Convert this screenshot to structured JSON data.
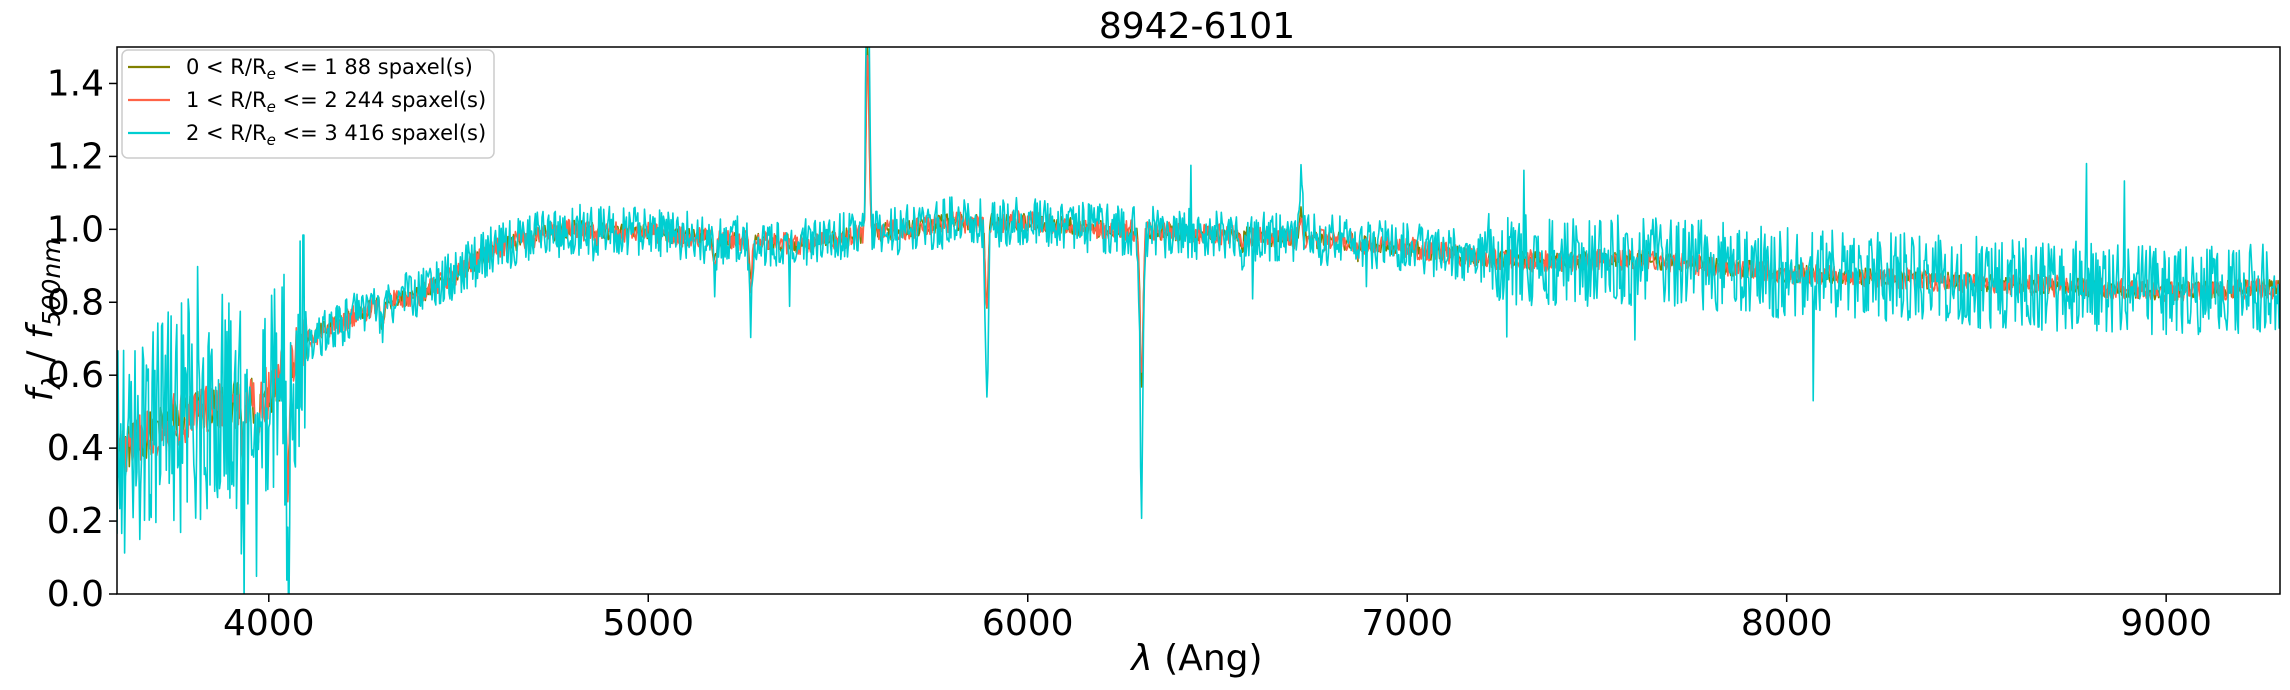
{
  "chart_data": {
    "type": "line",
    "title": "8942-6101",
    "xlabel": {
      "main": "λ",
      "rest": " (Ang)"
    },
    "ylabel": {
      "f": "f",
      "sub1": "λ",
      "sep": " / ",
      "f2": "f",
      "sub2": "500nm"
    },
    "xlim": [
      3600,
      9300
    ],
    "ylim": [
      0.0,
      1.5
    ],
    "xticks": [
      4000,
      5000,
      6000,
      7000,
      8000,
      9000
    ],
    "xtick_labels": [
      "4000",
      "5000",
      "6000",
      "7000",
      "8000",
      "9000"
    ],
    "yticks": [
      0.0,
      0.2,
      0.4,
      0.6,
      0.8,
      1.0,
      1.2,
      1.4
    ],
    "ytick_labels": [
      "0.0",
      "0.2",
      "0.4",
      "0.6",
      "0.8",
      "1.0",
      "1.2",
      "1.4"
    ],
    "grid": false,
    "legend_position": "top-left",
    "continuum": [
      [
        3600,
        0.38
      ],
      [
        3700,
        0.45
      ],
      [
        3800,
        0.5
      ],
      [
        3900,
        0.52
      ],
      [
        4000,
        0.55
      ],
      [
        4100,
        0.7
      ],
      [
        4200,
        0.75
      ],
      [
        4300,
        0.8
      ],
      [
        4400,
        0.82
      ],
      [
        4500,
        0.88
      ],
      [
        4600,
        0.95
      ],
      [
        4700,
        0.98
      ],
      [
        4800,
        1.0
      ],
      [
        5000,
        0.99
      ],
      [
        5200,
        0.97
      ],
      [
        5400,
        0.96
      ],
      [
        5600,
        0.99
      ],
      [
        5800,
        1.02
      ],
      [
        6000,
        1.02
      ],
      [
        6200,
        1.0
      ],
      [
        6400,
        0.99
      ],
      [
        6600,
        0.98
      ],
      [
        6800,
        0.97
      ],
      [
        7000,
        0.95
      ],
      [
        7200,
        0.92
      ],
      [
        7400,
        0.91
      ],
      [
        7600,
        0.92
      ],
      [
        7800,
        0.9
      ],
      [
        8000,
        0.88
      ],
      [
        8200,
        0.87
      ],
      [
        8400,
        0.86
      ],
      [
        8600,
        0.85
      ],
      [
        8800,
        0.84
      ],
      [
        9000,
        0.83
      ],
      [
        9300,
        0.84
      ]
    ],
    "features": [
      {
        "x": 3933,
        "depth": 0.3
      },
      {
        "x": 3968,
        "depth": 0.28
      },
      {
        "x": 4050,
        "depth": 0.6
      },
      {
        "x": 4300,
        "depth": 0.12
      },
      {
        "x": 4861,
        "depth": 0.05
      },
      {
        "x": 5175,
        "depth": 0.1
      },
      {
        "x": 5270,
        "depth": 0.2
      },
      {
        "x": 5578,
        "depth": -0.9
      },
      {
        "x": 5892,
        "depth": 0.45
      },
      {
        "x": 6300,
        "depth": 0.75
      },
      {
        "x": 6563,
        "depth": 0.06
      },
      {
        "x": 6720,
        "depth": -0.15
      },
      {
        "x": 6870,
        "depth": 0.06
      },
      {
        "x": 7600,
        "depth": 0.1
      }
    ],
    "series": [
      {
        "name": "0 < R/R_e <= 1 88 spaxel(s)",
        "label_a": "0 < R/R",
        "label_sub": "e",
        "label_b": " <= 1 88 spaxel(s)",
        "color": "#808000",
        "noise": 0.025
      },
      {
        "name": "1 < R/R_e <= 2 244 spaxel(s)",
        "label_a": "1 < R/R",
        "label_sub": "e",
        "label_b": " <= 2 244 spaxel(s)",
        "color": "#ff6347",
        "noise": 0.03
      },
      {
        "name": "2 < R/R_e <= 3 416 spaxel(s)",
        "label_a": "2 < R/R",
        "label_sub": "e",
        "label_b": " <= 3 416 spaxel(s)",
        "color": "#00ced1",
        "noise": 0.07
      }
    ]
  }
}
